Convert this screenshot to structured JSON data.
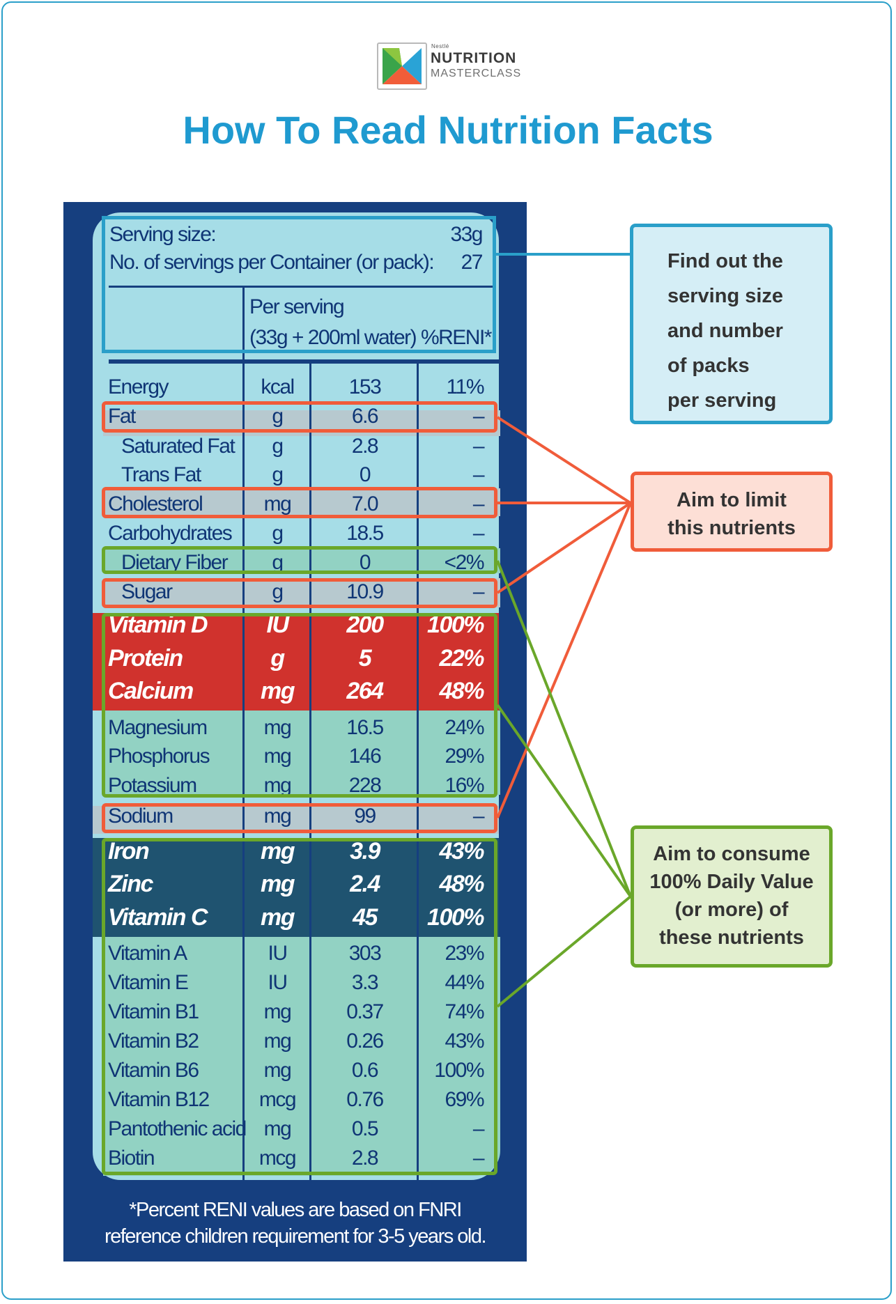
{
  "logo": {
    "brand": "Nestlé",
    "line1": "NUTRITION",
    "line2": "MASTERCLASS"
  },
  "title": "How To Read Nutrition Facts",
  "serving": {
    "size_label": "Serving size:",
    "size_value": "33g",
    "servings_label": "No. of servings per Container (or pack):",
    "servings_value": "27",
    "per_serving_line1": "Per serving",
    "per_serving_line2": "(33g + 200ml water) %RENI*"
  },
  "rows": [
    {
      "name": "Energy",
      "unit": "kcal",
      "value": "153",
      "pct": "11%"
    },
    {
      "name": "Fat",
      "unit": "g",
      "value": "6.6",
      "pct": "–"
    },
    {
      "name": "Saturated Fat",
      "unit": "g",
      "value": "2.8",
      "pct": "–"
    },
    {
      "name": "Trans Fat",
      "unit": "g",
      "value": "0",
      "pct": "–"
    },
    {
      "name": "Cholesterol",
      "unit": "mg",
      "value": "7.0",
      "pct": "–"
    },
    {
      "name": "Carbohydrates",
      "unit": "g",
      "value": "18.5",
      "pct": "–"
    },
    {
      "name": "Dietary Fiber",
      "unit": "g",
      "value": "0",
      "pct": "<2%"
    },
    {
      "name": "Sugar",
      "unit": "g",
      "value": "10.9",
      "pct": "–"
    },
    {
      "name": "Vitamin D",
      "unit": "IU",
      "value": "200",
      "pct": "100%"
    },
    {
      "name": "Protein",
      "unit": "g",
      "value": "5",
      "pct": "22%"
    },
    {
      "name": "Calcium",
      "unit": "mg",
      "value": "264",
      "pct": "48%"
    },
    {
      "name": "Magnesium",
      "unit": "mg",
      "value": "16.5",
      "pct": "24%"
    },
    {
      "name": "Phosphorus",
      "unit": "mg",
      "value": "146",
      "pct": "29%"
    },
    {
      "name": "Potassium",
      "unit": "mg",
      "value": "228",
      "pct": "16%"
    },
    {
      "name": "Sodium",
      "unit": "mg",
      "value": "99",
      "pct": "–"
    },
    {
      "name": "Iron",
      "unit": "mg",
      "value": "3.9",
      "pct": "43%"
    },
    {
      "name": "Zinc",
      "unit": "mg",
      "value": "2.4",
      "pct": "48%"
    },
    {
      "name": "Vitamin C",
      "unit": "mg",
      "value": "45",
      "pct": "100%"
    },
    {
      "name": "Vitamin A",
      "unit": "IU",
      "value": "303",
      "pct": "23%"
    },
    {
      "name": "Vitamin E",
      "unit": "IU",
      "value": "3.3",
      "pct": "44%"
    },
    {
      "name": "Vitamin B1",
      "unit": "mg",
      "value": "0.37",
      "pct": "74%"
    },
    {
      "name": "Vitamin B2",
      "unit": "mg",
      "value": "0.26",
      "pct": "43%"
    },
    {
      "name": "Vitamin B6",
      "unit": "mg",
      "value": "0.6",
      "pct": "100%"
    },
    {
      "name": "Vitamin B12",
      "unit": "mcg",
      "value": "0.76",
      "pct": "69%"
    },
    {
      "name": "Pantothenic acid",
      "unit": "mg",
      "value": "0.5",
      "pct": "–"
    },
    {
      "name": "Biotin",
      "unit": "mcg",
      "value": "2.8",
      "pct": "–"
    }
  ],
  "footnote": {
    "line1": "*Percent RENI values are based on FNRI",
    "line2": "reference children requirement for  3-5 years old."
  },
  "callouts": {
    "serving": [
      "Find out the",
      "serving size",
      "and number",
      "of packs",
      "per serving"
    ],
    "limit": [
      "Aim to limit",
      "this nutrients"
    ],
    "consume": [
      "Aim to consume",
      "100% Daily Value",
      "(or more) of",
      "these nutrients"
    ]
  },
  "colors": {
    "title_blue": "#1f9ad0",
    "panel_navy": "#163f7f",
    "limit_red": "#f05c3a",
    "consume_green": "#6aa72a",
    "highlight_red": "#d0322d",
    "highlight_teal": "#1f5370"
  }
}
